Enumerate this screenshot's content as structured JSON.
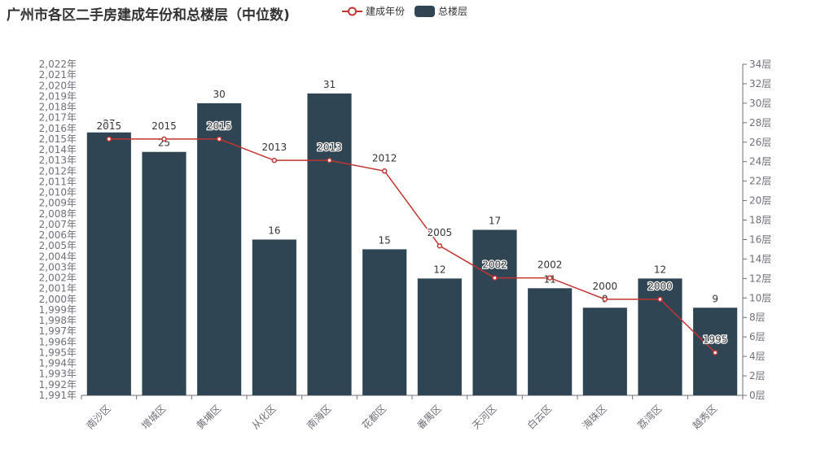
{
  "chart_data": {
    "type": "bar+line",
    "title": "广州市各区二手房建成年份和总楼层（中位数)",
    "categories": [
      "南沙区",
      "增城区",
      "黄埔区",
      "从化区",
      "南海区",
      "花都区",
      "番禺区",
      "天河区",
      "白云区",
      "海珠区",
      "荔湾区",
      "越秀区"
    ],
    "series": [
      {
        "name": "总楼层",
        "type": "bar",
        "axis": "right",
        "color": "#2f4554",
        "values": [
          27,
          25,
          30,
          16,
          31,
          15,
          12,
          17,
          11,
          9,
          12,
          9
        ]
      },
      {
        "name": "建成年份",
        "type": "line",
        "axis": "left",
        "color": "#c23531",
        "values": [
          2015,
          2015,
          2015,
          2013,
          2013,
          2012,
          2005,
          2002,
          2002,
          2000,
          2000,
          1995
        ]
      }
    ],
    "left_axis": {
      "min": 1991,
      "max": 2022,
      "step": 1,
      "suffix": "年"
    },
    "right_axis": {
      "min": 0,
      "max": 34,
      "step": 2,
      "suffix": "层"
    },
    "legend_position": "top"
  }
}
